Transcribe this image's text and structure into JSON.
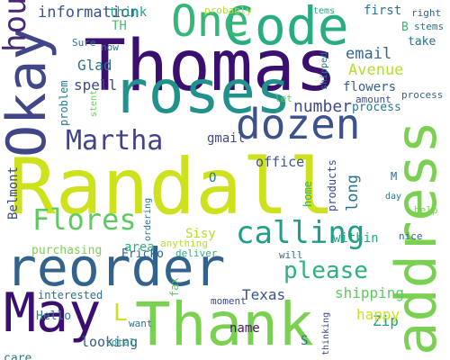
{
  "cloud": {
    "words": {
      "randall": "Randall",
      "thomas": "Thomas",
      "reorder": "reorder",
      "thank": "Thank",
      "roses": "roses",
      "may": "May",
      "code": "Code",
      "one": "One",
      "address": "address",
      "okay": "Okay",
      "dozen": "dozen",
      "calling": "calling",
      "martha": "Martha",
      "flores": "Flores",
      "please": "please",
      "hours": "hours",
      "information": "information",
      "email": "email",
      "avenue": "Avenue",
      "glad": "Glad",
      "spell": "spell",
      "flowers": "flowers",
      "number": "number",
      "within": "within",
      "texas": "Texas",
      "zip": "Zip",
      "looking": "looking",
      "name": "name",
      "happy": "happy",
      "first": "first",
      "take": "take",
      "b": "B",
      "shipping": "shipping",
      "area": "area",
      "gmail": "gmail",
      "office": "office",
      "think": "think",
      "th": "TH",
      "ericko": "Ericko",
      "hello": "Hello",
      "care": "care",
      "purchasing": "purchasing",
      "right": "right",
      "stems": "stems",
      "shipped": "shipped",
      "amount": "amount",
      "process": "process",
      "help": "help",
      "day": "day",
      "nice": "nice",
      "let": "let",
      "probably": "probably",
      "sure": "Sure",
      "now": "now",
      "stent": "stent",
      "ordering": "ordering",
      "anything": "anything",
      "deliver": "deliver",
      "moment": "moment",
      "want": "want",
      "total": "total",
      "will": "will",
      "interested": "interested",
      "thinking": "thinking",
      "s": "S",
      "belmont": "Belmont",
      "problem": "problem",
      "long": "long",
      "products": "products",
      "home": "home",
      "sisy": "Sisy",
      "fax": "fax",
      "l": "L",
      "o": "O",
      "m": "M",
      "to": "to"
    }
  }
}
